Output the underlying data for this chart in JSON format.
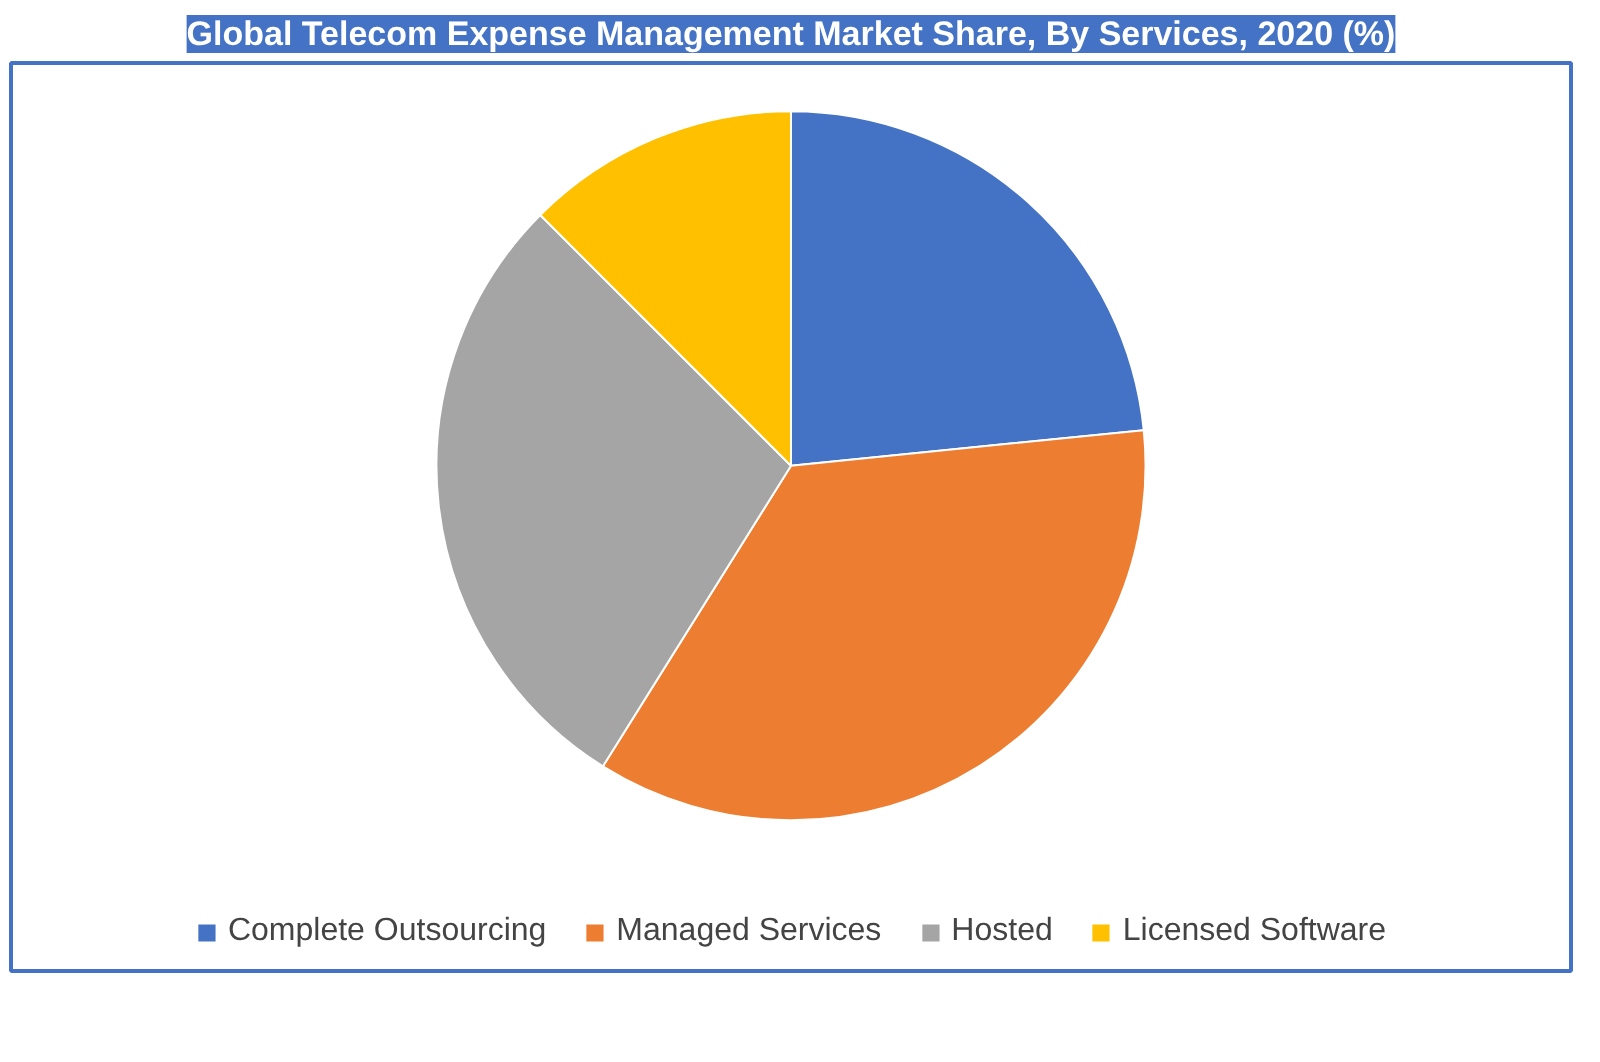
{
  "chart_data": {
    "type": "pie",
    "title": "Global Telecom Expense Management Market Share, By Services, 2020 (%)",
    "categories": [
      "Complete Outsourcing",
      "Managed Services",
      "Hosted",
      "Licensed Software"
    ],
    "values": [
      23.4,
      35.5,
      28.6,
      12.5
    ],
    "colors": [
      "#4472c4",
      "#ed7d31",
      "#a5a5a5",
      "#ffc000"
    ],
    "legend": "bottom"
  }
}
